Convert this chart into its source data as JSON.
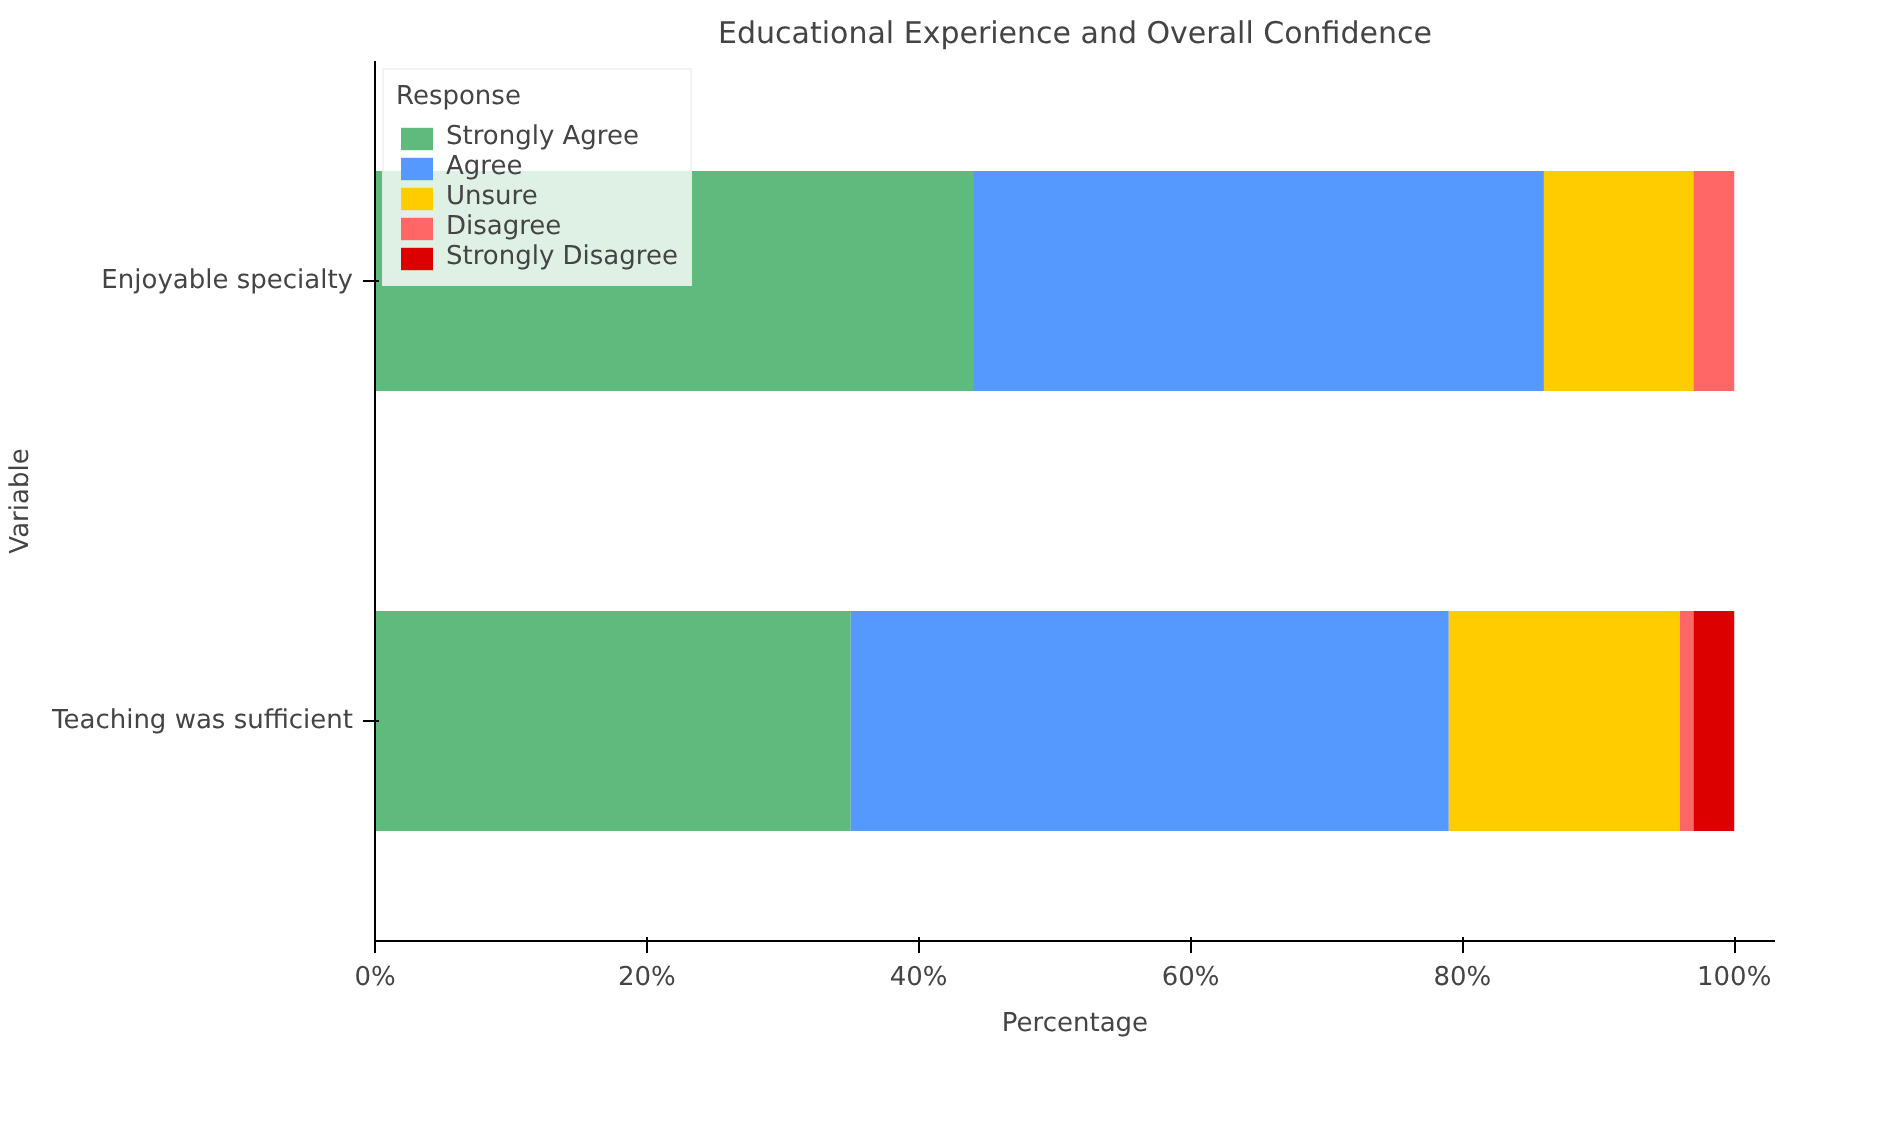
{
  "chart_data": {
    "type": "bar",
    "orientation": "horizontal",
    "stacked": true,
    "title": "Educational Experience and Overall Confidence",
    "xlabel": "Percentage",
    "ylabel": "Variable",
    "legend_title": "Response",
    "legend": "top left",
    "grid": false,
    "categories": [
      "Enjoyable specialty",
      "Teaching was sufficient"
    ],
    "xlim": [
      0,
      103
    ],
    "xticks": [
      {
        "value": 0,
        "label": "0%"
      },
      {
        "value": 20,
        "label": "20%"
      },
      {
        "value": 40,
        "label": "40%"
      },
      {
        "value": 60,
        "label": "60%"
      },
      {
        "value": 80,
        "label": "80%"
      },
      {
        "value": 100,
        "label": "100%"
      }
    ],
    "series": [
      {
        "name": "Strongly Agree",
        "color": "#5fba7d",
        "values": [
          44,
          35
        ]
      },
      {
        "name": "Agree",
        "color": "#5599ff",
        "values": [
          42,
          44
        ]
      },
      {
        "name": "Unsure",
        "color": "#ffcc00",
        "values": [
          11,
          17
        ]
      },
      {
        "name": "Disagree",
        "color": "#ff6666",
        "values": [
          3,
          1
        ]
      },
      {
        "name": "Strongly Disagree",
        "color": "#dd0000",
        "values": [
          0,
          3
        ]
      }
    ]
  }
}
